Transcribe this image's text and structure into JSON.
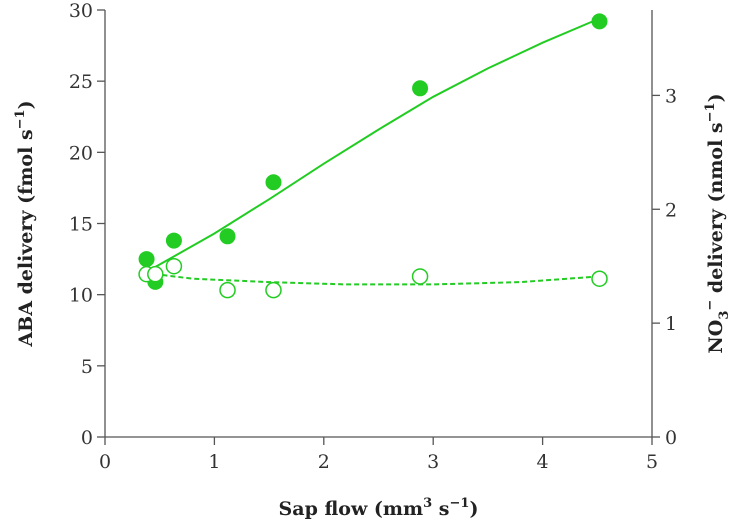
{
  "chart_data": {
    "type": "scatter",
    "title": "",
    "x_axis": {
      "label_main": "Sap flow (mm",
      "label_sup1": "3",
      "label_mid": " s",
      "label_sup2": "−1",
      "label_end": ")",
      "range": [
        0,
        5
      ],
      "ticks": [
        0,
        1,
        2,
        3,
        4,
        5
      ]
    },
    "y_left_axis": {
      "label_main": "ABA delivery (fmol s",
      "label_sup": "−1",
      "label_end": ")",
      "range": [
        0,
        30
      ],
      "ticks": [
        0,
        5,
        10,
        15,
        20,
        25,
        30
      ]
    },
    "y_right_axis": {
      "label_pre": "NO",
      "label_sub": "3",
      "label_sup_charge": "−",
      "label_mid": " delivery (nmol s",
      "label_sup": "−1",
      "label_end": ")",
      "range": [
        0,
        3.75
      ],
      "ticks": [
        0,
        1,
        2,
        3
      ]
    },
    "grid": false,
    "legend": "none",
    "series": [
      {
        "axis": "left",
        "marker": "filled-circle",
        "color": "#22cc22",
        "x": [
          0.38,
          0.46,
          0.63,
          1.12,
          1.54,
          2.88,
          4.52
        ],
        "y": [
          12.5,
          10.9,
          13.8,
          14.1,
          17.9,
          24.5,
          29.2
        ],
        "fit": {
          "style": "solid",
          "x": [
            0.38,
            1.0,
            1.5,
            2.0,
            2.5,
            3.0,
            3.5,
            4.0,
            4.52
          ],
          "y": [
            11.6,
            14.3,
            16.7,
            19.2,
            21.6,
            23.9,
            25.9,
            27.7,
            29.4
          ]
        }
      },
      {
        "axis": "right",
        "marker": "open-circle",
        "color": "#22cc22",
        "x": [
          0.38,
          0.46,
          0.63,
          1.12,
          1.54,
          2.88,
          4.52
        ],
        "y": [
          1.43,
          1.43,
          1.5,
          1.29,
          1.29,
          1.41,
          1.39
        ],
        "fit": {
          "style": "dashed",
          "x": [
            0.38,
            0.8,
            1.5,
            2.2,
            3.0,
            3.8,
            4.52
          ],
          "y": [
            1.44,
            1.39,
            1.36,
            1.34,
            1.34,
            1.36,
            1.41
          ]
        }
      }
    ]
  }
}
